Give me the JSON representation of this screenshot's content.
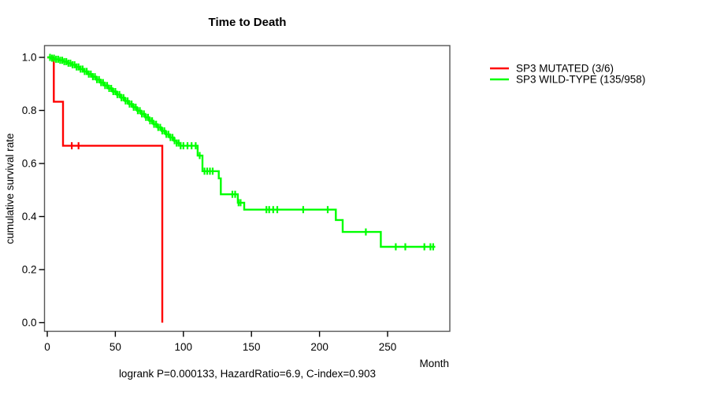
{
  "chart_data": {
    "type": "line",
    "step": true,
    "title": "Time to Death",
    "xlabel": "Month",
    "ylabel": "cumulative survival rate",
    "caption": "logrank P=0.000133, HazardRatio=6.9, C-index=0.903",
    "xticks": [
      0,
      50,
      100,
      150,
      200,
      250
    ],
    "ytick_labels": [
      "0.0",
      "0.2",
      "0.4",
      "0.6",
      "0.8",
      "1.0"
    ],
    "xlim": [
      0,
      300
    ],
    "ylim": [
      0,
      1
    ],
    "grid": false,
    "legend_position": "right-outside-top",
    "axis_color": "#000000",
    "box_color": "#565656",
    "series": [
      {
        "id": "mutated",
        "name": "SP3 MUTATED (3/6)",
        "color": "#ff0000",
        "steps": [
          [
            0,
            1.0
          ],
          [
            4.8,
            0.833
          ],
          [
            11.6,
            0.667
          ],
          [
            84.5,
            0.0
          ]
        ],
        "censor_months": [
          18,
          23
        ]
      },
      {
        "id": "wildtype",
        "name": "SP3 WILD-TYPE (135/958)",
        "color": "#00ff00",
        "steps": [
          [
            0,
            1.0
          ],
          [
            3,
            0.997
          ],
          [
            6,
            0.993
          ],
          [
            9,
            0.989
          ],
          [
            12,
            0.984
          ],
          [
            15,
            0.978
          ],
          [
            18,
            0.972
          ],
          [
            21,
            0.964
          ],
          [
            24,
            0.956
          ],
          [
            27,
            0.947
          ],
          [
            30,
            0.937
          ],
          [
            33,
            0.927
          ],
          [
            36,
            0.916
          ],
          [
            39,
            0.905
          ],
          [
            42,
            0.894
          ],
          [
            45,
            0.883
          ],
          [
            48,
            0.871
          ],
          [
            51,
            0.86
          ],
          [
            54,
            0.848
          ],
          [
            57,
            0.836
          ],
          [
            60,
            0.824
          ],
          [
            63,
            0.812
          ],
          [
            66,
            0.799
          ],
          [
            69,
            0.787
          ],
          [
            72,
            0.774
          ],
          [
            75,
            0.761
          ],
          [
            78,
            0.748
          ],
          [
            81,
            0.736
          ],
          [
            84,
            0.723
          ],
          [
            87,
            0.71
          ],
          [
            90,
            0.698
          ],
          [
            93,
            0.686
          ],
          [
            95,
            0.677
          ],
          [
            98,
            0.667
          ],
          [
            110.5,
            0.63
          ],
          [
            114,
            0.571
          ],
          [
            126,
            0.544
          ],
          [
            127.5,
            0.484
          ],
          [
            140,
            0.452
          ],
          [
            144.7,
            0.426
          ],
          [
            212,
            0.387
          ],
          [
            217,
            0.342
          ],
          [
            245,
            0.286
          ],
          [
            285,
            0.286
          ]
        ],
        "censor_months": [
          2,
          3.5,
          5,
          6.5,
          8,
          9.5,
          11,
          12.5,
          14,
          15.5,
          17,
          18.5,
          20,
          21.5,
          23,
          24.5,
          26,
          27.5,
          29,
          30.5,
          32,
          33.5,
          35,
          36.5,
          38,
          39.5,
          41,
          42.5,
          44,
          45.5,
          47,
          48.5,
          50,
          51.5,
          53,
          54.5,
          56,
          57.5,
          59,
          60.5,
          62,
          63.5,
          65,
          66.5,
          68,
          69.5,
          71,
          72.5,
          74,
          75.5,
          77,
          78.5,
          80,
          81.5,
          83,
          84.5,
          86,
          87.5,
          89,
          90.5,
          92,
          93.5,
          95,
          96.5,
          98,
          100,
          103,
          106,
          109,
          112,
          115.5,
          117.5,
          119.5,
          121.5,
          136,
          138,
          140.5,
          142,
          161,
          163,
          166,
          169,
          188,
          206,
          234,
          256,
          263,
          277,
          281.5,
          283.5
        ]
      }
    ]
  }
}
